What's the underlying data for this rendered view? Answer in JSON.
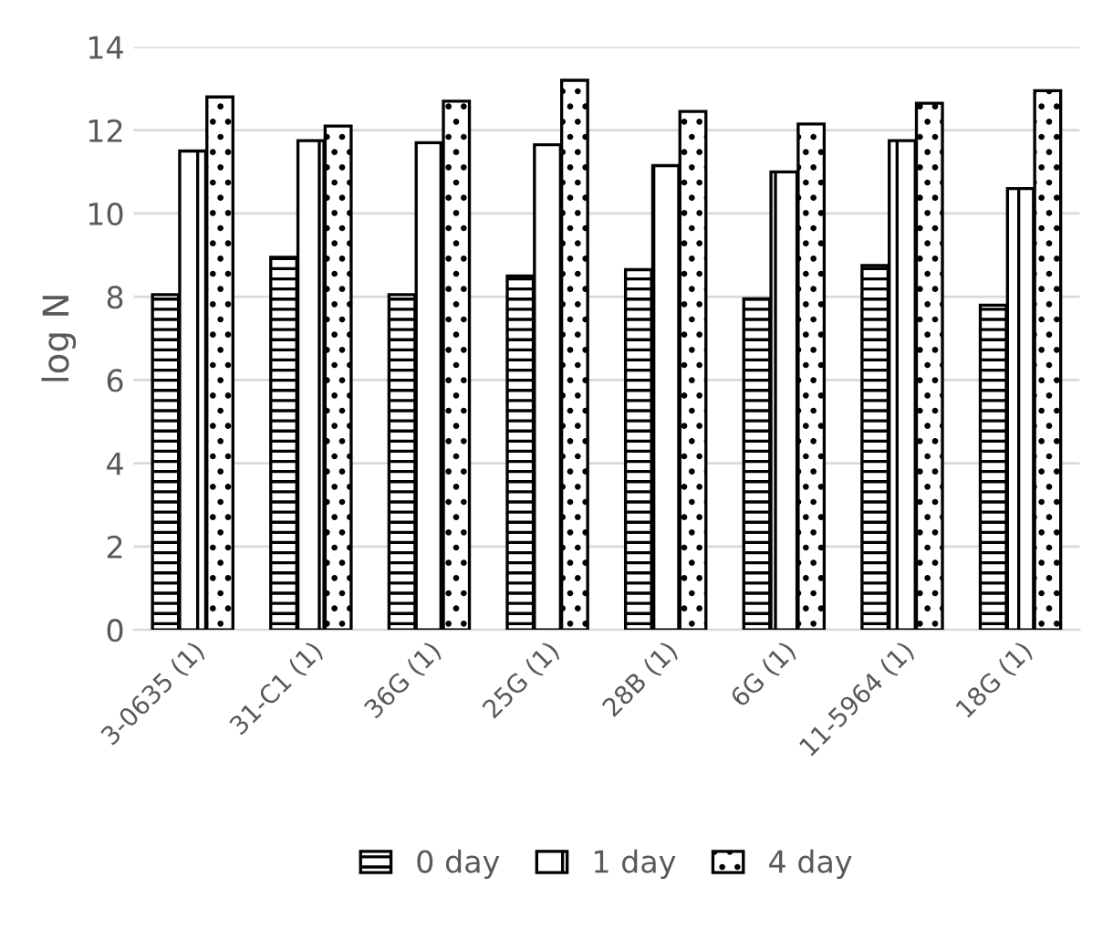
{
  "chart_data": {
    "type": "bar",
    "ylabel": "log N",
    "categories": [
      "3-0635 (1)",
      "31-C1 (1)",
      "36G (1)",
      "25G (1)",
      "28B (1)",
      "6G (1)",
      "11-5964 (1)",
      "18G (1)"
    ],
    "series": [
      {
        "name": "0 day",
        "color": "#000000",
        "values": [
          8.05,
          8.95,
          8.05,
          8.5,
          8.65,
          7.95,
          8.75,
          7.8
        ]
      },
      {
        "name": "1 day",
        "color": "#000000",
        "values": [
          11.5,
          11.75,
          11.7,
          11.65,
          11.15,
          11.0,
          11.75,
          10.6
        ]
      },
      {
        "name": "4 day",
        "color": "#000000",
        "values": [
          12.8,
          12.1,
          12.7,
          13.2,
          12.45,
          12.15,
          12.65,
          12.95
        ]
      }
    ],
    "ylim": [
      0,
      14
    ],
    "yticks": [
      0,
      2,
      4,
      6,
      8,
      10,
      12,
      14
    ],
    "grid": "y",
    "legend": "bottom"
  }
}
